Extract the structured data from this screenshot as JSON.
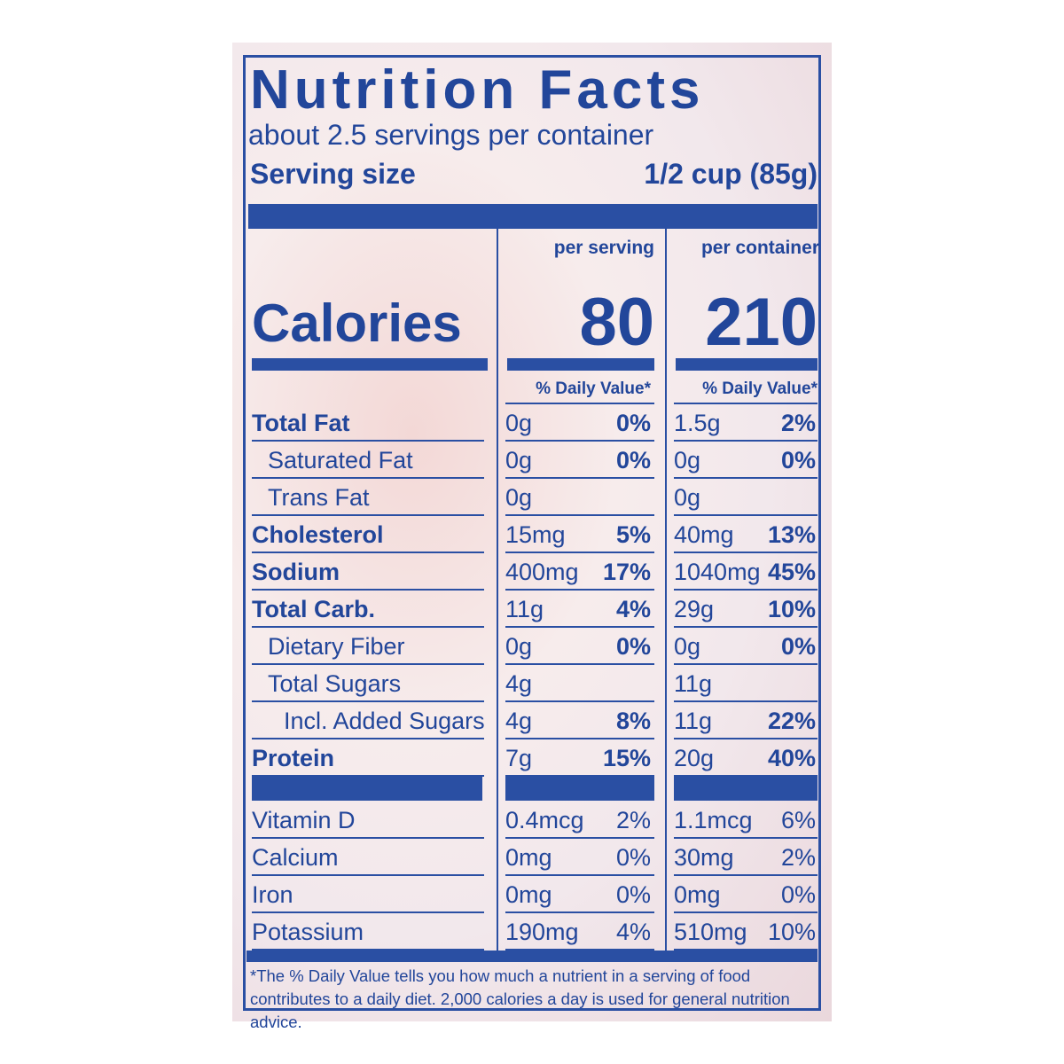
{
  "title": "Nutrition Facts",
  "servings_per_container": "about 2.5 servings per container",
  "serving_size_label": "Serving size",
  "serving_size_value": "1/2 cup (85g)",
  "columns": [
    "per serving",
    "per container"
  ],
  "calories_label": "Calories",
  "calories": [
    "80",
    "210"
  ],
  "daily_value_header": "% Daily Value*",
  "nutrients": [
    {
      "name": "Total Fat",
      "bold": true,
      "indent": 0,
      "serving": "0g",
      "serving_dv": "0%",
      "container": "1.5g",
      "container_dv": "2%"
    },
    {
      "name": "Saturated Fat",
      "bold": false,
      "indent": 1,
      "serving": "0g",
      "serving_dv": "0%",
      "container": "0g",
      "container_dv": "0%"
    },
    {
      "name": "Trans Fat",
      "bold": false,
      "indent": 1,
      "serving": "0g",
      "serving_dv": "",
      "container": "0g",
      "container_dv": ""
    },
    {
      "name": "Cholesterol",
      "bold": true,
      "indent": 0,
      "serving": "15mg",
      "serving_dv": "5%",
      "container": "40mg",
      "container_dv": "13%"
    },
    {
      "name": "Sodium",
      "bold": true,
      "indent": 0,
      "serving": "400mg",
      "serving_dv": "17%",
      "container": "1040mg",
      "container_dv": "45%"
    },
    {
      "name": "Total Carb.",
      "bold": true,
      "indent": 0,
      "serving": "11g",
      "serving_dv": "4%",
      "container": "29g",
      "container_dv": "10%"
    },
    {
      "name": "Dietary Fiber",
      "bold": false,
      "indent": 1,
      "serving": "0g",
      "serving_dv": "0%",
      "container": "0g",
      "container_dv": "0%"
    },
    {
      "name": "Total Sugars",
      "bold": false,
      "indent": 1,
      "serving": "4g",
      "serving_dv": "",
      "container": "11g",
      "container_dv": ""
    },
    {
      "name": "Incl. Added Sugars",
      "bold": false,
      "indent": 2,
      "serving": "4g",
      "serving_dv": "8%",
      "container": "11g",
      "container_dv": "22%"
    },
    {
      "name": "Protein",
      "bold": true,
      "indent": 0,
      "serving": "7g",
      "serving_dv": "15%",
      "container": "20g",
      "container_dv": "40%"
    }
  ],
  "vitamins": [
    {
      "name": "Vitamin D",
      "serving": "0.4mcg",
      "serving_dv": "2%",
      "container": "1.1mcg",
      "container_dv": "6%"
    },
    {
      "name": "Calcium",
      "serving": "0mg",
      "serving_dv": "0%",
      "container": "30mg",
      "container_dv": "2%"
    },
    {
      "name": "Iron",
      "serving": "0mg",
      "serving_dv": "0%",
      "container": "0mg",
      "container_dv": "0%"
    },
    {
      "name": "Potassium",
      "serving": "190mg",
      "serving_dv": "4%",
      "container": "510mg",
      "container_dv": "10%"
    }
  ],
  "footnote": "*The % Daily Value tells you how much a nutrient in a serving of food contributes to a daily diet. 2,000 calories a day is used for general nutrition advice.",
  "colors": {
    "ink": "#2a4fa3",
    "background": "#f5e6e8"
  }
}
